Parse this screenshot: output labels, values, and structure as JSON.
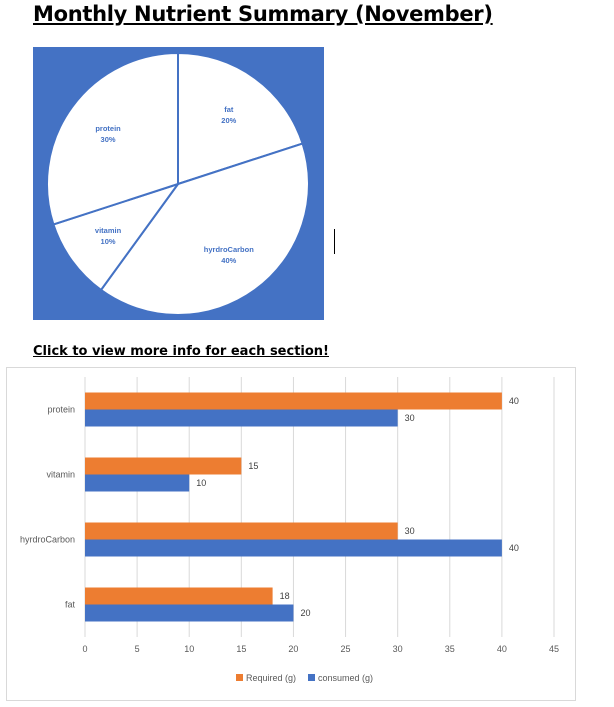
{
  "page": {
    "title": "Monthly Nutrient Summary (November)",
    "link_text": "Click to view more info for each section!"
  },
  "colors": {
    "pie_background": "#4472c4",
    "pie_fill": "#ffffff",
    "pie_stroke": "#4472c4",
    "pie_label": "#4472c4",
    "required": "#ed7d31",
    "consumed": "#4472c4",
    "grid": "#d9d9d9",
    "axis_text": "#595959"
  },
  "chart_data": [
    {
      "type": "pie",
      "title": "",
      "slices": [
        {
          "label": "fat",
          "percent_label": "20%",
          "value": 20
        },
        {
          "label": "hyrdroCarbon",
          "percent_label": "40%",
          "value": 40
        },
        {
          "label": "vitamin",
          "percent_label": "10%",
          "value": 10
        },
        {
          "label": "protein",
          "percent_label": "30%",
          "value": 30
        }
      ]
    },
    {
      "type": "bar",
      "orientation": "horizontal",
      "title": "",
      "categories": [
        "protein",
        "vitamin",
        "hyrdroCarbon",
        "fat"
      ],
      "series": [
        {
          "name": "Required (g)",
          "values": [
            40,
            15,
            30,
            18
          ]
        },
        {
          "name": "consumed (g)",
          "values": [
            30,
            10,
            40,
            20
          ]
        }
      ],
      "xlim": [
        0,
        45
      ],
      "xticks": [
        "0",
        "5",
        "10",
        "15",
        "20",
        "25",
        "30",
        "35",
        "40",
        "45"
      ],
      "grid": true,
      "legend": "bottom"
    }
  ]
}
